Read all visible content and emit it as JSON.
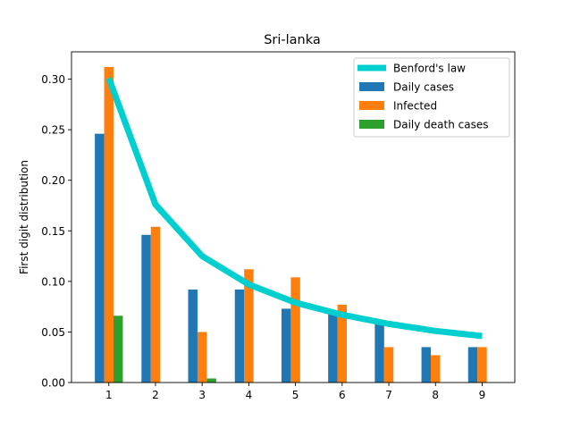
{
  "chart_data": {
    "type": "bar",
    "title": "Sri-lanka",
    "xlabel": "",
    "ylabel": "First digit distribution",
    "categories": [
      1,
      2,
      3,
      4,
      5,
      6,
      7,
      8,
      9
    ],
    "xlim": [
      0.2,
      9.7
    ],
    "ylim": [
      0,
      0.327
    ],
    "yticks": [
      0.0,
      0.05,
      0.1,
      0.15,
      0.2,
      0.25,
      0.3
    ],
    "ytick_labels": [
      "0.00",
      "0.05",
      "0.10",
      "0.15",
      "0.20",
      "0.25",
      "0.30"
    ],
    "grid": false,
    "legend_position": "upper right",
    "series": [
      {
        "name": "Daily cases",
        "kind": "bar",
        "color": "#1f77b4",
        "values": [
          0.246,
          0.146,
          0.092,
          0.092,
          0.073,
          0.068,
          0.058,
          0.035,
          0.035
        ]
      },
      {
        "name": "Infected",
        "kind": "bar",
        "color": "#ff7f0e",
        "values": [
          0.312,
          0.154,
          0.05,
          0.112,
          0.104,
          0.077,
          0.035,
          0.027,
          0.035
        ]
      },
      {
        "name": "Daily death cases",
        "kind": "bar",
        "color": "#2ca02c",
        "values": [
          0.066,
          0,
          0.004,
          0,
          0,
          0,
          0,
          0,
          0
        ]
      }
    ],
    "line": {
      "name": "Benford's law",
      "kind": "line",
      "color": "#00cfcf",
      "values": [
        0.301,
        0.176,
        0.125,
        0.097,
        0.079,
        0.067,
        0.058,
        0.051,
        0.046
      ]
    }
  }
}
